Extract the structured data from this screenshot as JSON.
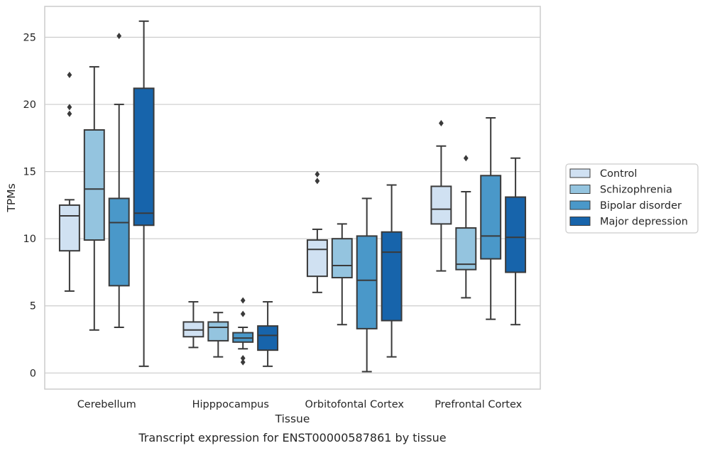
{
  "caption": "Transcript expression for ENST00000587861 by tissue",
  "colors": {
    "Control": "#d0e1f2",
    "Schizophrenia": "#94c4df",
    "Bipolar disorder": "#4a98c9",
    "Major depression": "#1764ab",
    "box_edge": "#3a3a3a",
    "grid": "#cccccc",
    "frame": "#cccccc"
  },
  "chart_data": {
    "type": "boxplot",
    "title": "",
    "xlabel": "Tissue",
    "ylabel": "TPMs",
    "ylim": [
      -1.2,
      27.3
    ],
    "yticks": [
      0,
      5,
      10,
      15,
      20,
      25
    ],
    "grid": "horizontal",
    "legend_position": "right",
    "categories": [
      "Cerebellum",
      "Hipppocampus",
      "Orbitofontal Cortex",
      "Prefrontal Cortex"
    ],
    "series": [
      {
        "name": "Control",
        "boxes": [
          {
            "whisker_low": 6.1,
            "q1": 9.1,
            "median": 11.7,
            "q3": 12.5,
            "whisker_high": 12.9,
            "outliers": [
              19.3,
              19.8,
              22.2
            ]
          },
          {
            "whisker_low": 1.9,
            "q1": 2.7,
            "median": 3.2,
            "q3": 3.8,
            "whisker_high": 5.3,
            "outliers": []
          },
          {
            "whisker_low": 6.0,
            "q1": 7.2,
            "median": 9.2,
            "q3": 9.9,
            "whisker_high": 10.7,
            "outliers": [
              14.3,
              14.8
            ]
          },
          {
            "whisker_low": 7.6,
            "q1": 11.1,
            "median": 12.2,
            "q3": 13.9,
            "whisker_high": 16.9,
            "outliers": [
              18.6
            ]
          }
        ]
      },
      {
        "name": "Schizophrenia",
        "boxes": [
          {
            "whisker_low": 3.2,
            "q1": 9.9,
            "median": 13.7,
            "q3": 18.1,
            "whisker_high": 22.8,
            "outliers": []
          },
          {
            "whisker_low": 1.2,
            "q1": 2.4,
            "median": 3.4,
            "q3": 3.8,
            "whisker_high": 4.5,
            "outliers": []
          },
          {
            "whisker_low": 3.6,
            "q1": 7.1,
            "median": 8.0,
            "q3": 10.0,
            "whisker_high": 11.1,
            "outliers": []
          },
          {
            "whisker_low": 5.6,
            "q1": 7.7,
            "median": 8.1,
            "q3": 10.8,
            "whisker_high": 13.5,
            "outliers": [
              16.0
            ]
          }
        ]
      },
      {
        "name": "Bipolar disorder",
        "boxes": [
          {
            "whisker_low": 3.4,
            "q1": 6.5,
            "median": 11.2,
            "q3": 13.0,
            "whisker_high": 20.0,
            "outliers": [
              25.1
            ]
          },
          {
            "whisker_low": 1.8,
            "q1": 2.3,
            "median": 2.6,
            "q3": 3.0,
            "whisker_high": 3.4,
            "outliers": [
              0.8,
              1.1,
              4.4,
              5.4
            ]
          },
          {
            "whisker_low": 0.1,
            "q1": 3.3,
            "median": 6.9,
            "q3": 10.2,
            "whisker_high": 13.0,
            "outliers": []
          },
          {
            "whisker_low": 4.0,
            "q1": 8.5,
            "median": 10.2,
            "q3": 14.7,
            "whisker_high": 19.0,
            "outliers": []
          }
        ]
      },
      {
        "name": "Major depression",
        "boxes": [
          {
            "whisker_low": 0.5,
            "q1": 11.0,
            "median": 11.9,
            "q3": 21.2,
            "whisker_high": 26.2,
            "outliers": []
          },
          {
            "whisker_low": 0.5,
            "q1": 1.7,
            "median": 2.8,
            "q3": 3.5,
            "whisker_high": 5.3,
            "outliers": []
          },
          {
            "whisker_low": 1.2,
            "q1": 3.9,
            "median": 9.0,
            "q3": 10.5,
            "whisker_high": 14.0,
            "outliers": []
          },
          {
            "whisker_low": 3.6,
            "q1": 7.5,
            "median": 10.1,
            "q3": 13.1,
            "whisker_high": 16.0,
            "outliers": []
          }
        ]
      }
    ]
  }
}
